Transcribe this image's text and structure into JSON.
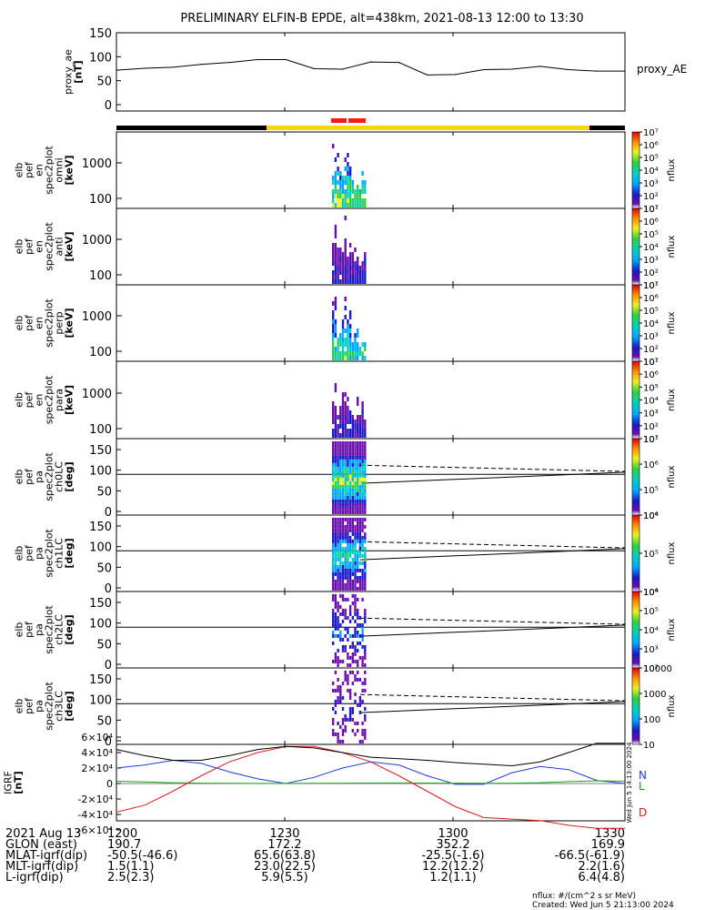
{
  "title": "PRELIMINARY ELFIN-B EPDE, alt=438km, 2021-08-13 12:00 to 13:30",
  "time_ticks": [
    "1200",
    "1230",
    "1300",
    "1330"
  ],
  "colors": {
    "axis": "#000000",
    "ae_line": "#000000",
    "bar_black": "#000000",
    "bar_yellow": "#f5d800",
    "bar_red": "#ff1a1a",
    "comp_n": "#1f3fd0",
    "comp_l": "#1aa31a",
    "comp_d": "#d81b1b",
    "dashed_line": "#000000"
  },
  "panels": {
    "ae": {
      "ylabel": "proxy_ae",
      "unit": "[nT]",
      "legend": "proxy_AE",
      "ticks": [
        "0",
        "50",
        "100",
        "150"
      ]
    },
    "energy": [
      {
        "ylabel": [
          "elb",
          "pef",
          "en",
          "spec2plot",
          "omni"
        ],
        "unit": "[keV]",
        "ticks": [
          "100",
          "1000"
        ],
        "cb_ticks": [
          "10¹",
          "10²",
          "10³",
          "10⁴",
          "10⁵",
          "10⁶",
          "10⁷"
        ],
        "cb_label": "nflux"
      },
      {
        "ylabel": [
          "elb",
          "pef",
          "en",
          "spec2plot",
          "anti"
        ],
        "unit": "[keV]",
        "ticks": [
          "100",
          "1000"
        ],
        "cb_ticks": [
          "10¹",
          "10²",
          "10³",
          "10⁴",
          "10⁵",
          "10⁶",
          "10⁷"
        ],
        "cb_label": "nflux"
      },
      {
        "ylabel": [
          "elb",
          "pef",
          "en",
          "spec2plot",
          "perp"
        ],
        "unit": "[keV]",
        "ticks": [
          "100",
          "1000"
        ],
        "cb_ticks": [
          "10¹",
          "10²",
          "10³",
          "10⁴",
          "10⁵",
          "10⁶",
          "10⁷"
        ],
        "cb_label": "nflux"
      },
      {
        "ylabel": [
          "elb",
          "pef",
          "en",
          "spec2plot",
          "para"
        ],
        "unit": "[keV]",
        "ticks": [
          "100",
          "1000"
        ],
        "cb_ticks": [
          "10¹",
          "10²",
          "10³",
          "10⁴",
          "10⁵",
          "10⁶",
          "10⁷"
        ],
        "cb_label": "nflux"
      }
    ],
    "pa": [
      {
        "ylabel": [
          "elb",
          "pef",
          "pa",
          "spec2plot",
          "ch0LC"
        ],
        "unit": "[deg]",
        "ticks": [
          "0",
          "50",
          "100",
          "150"
        ],
        "cb_ticks": [
          "10⁴",
          "10⁵",
          "10⁶",
          "10⁷"
        ],
        "cb_label": "nflux"
      },
      {
        "ylabel": [
          "elb",
          "pef",
          "pa",
          "spec2plot",
          "ch1LC"
        ],
        "unit": "[deg]",
        "ticks": [
          "0",
          "50",
          "100",
          "150"
        ],
        "cb_ticks": [
          "10⁴",
          "10⁵",
          "10⁶"
        ],
        "cb_label": "nflux"
      },
      {
        "ylabel": [
          "elb",
          "pef",
          "pa",
          "spec2plot",
          "ch2LC"
        ],
        "unit": "[deg]",
        "ticks": [
          "0",
          "50",
          "100",
          "150"
        ],
        "cb_ticks": [
          "10²",
          "10³",
          "10⁴",
          "10⁵",
          "10⁶"
        ],
        "cb_label": "nflux"
      },
      {
        "ylabel": [
          "elb",
          "pef",
          "pa",
          "spec2plot",
          "ch3LC"
        ],
        "unit": "[deg]",
        "ticks": [
          "0",
          "50",
          "100",
          "150"
        ],
        "cb_ticks": [
          "10",
          "100",
          "1000",
          "10000"
        ],
        "cb_label": "nflux"
      }
    ],
    "igrf": {
      "ylabel": "IGRF",
      "unit": "[nT]",
      "ticks": [
        "-6×10⁴",
        "-4×10⁴",
        "-2×10⁴",
        "0",
        "2×10⁴",
        "4×10⁴",
        "6×10⁴"
      ],
      "labels": [
        "N",
        "L",
        "D"
      ],
      "side_note": "Wed Jun  5 14:13:00 2024"
    }
  },
  "orbit_table": {
    "rows": [
      {
        "label": "2021 Aug 13",
        "values": [
          "1200",
          "1230",
          "1300",
          "1330"
        ]
      },
      {
        "label": "GLON (east)",
        "values": [
          "190.7",
          "172.2",
          "352.2",
          "169.9"
        ]
      },
      {
        "label": "MLAT-igrf(dip)",
        "values": [
          "-50.5(-46.6)",
          "65.6(63.8)",
          "-25.5(-1.6)",
          "-66.5(-61.9)"
        ]
      },
      {
        "label": "MLT-igrf(dip)",
        "values": [
          "1.5(1.1)",
          "23.0(22.5)",
          "12.2(12.2)",
          "2.2(1.6)"
        ]
      },
      {
        "label": "L-igrf(dip)",
        "values": [
          "2.5(2.3)",
          "5.9(5.5)",
          "1.2(1.1)",
          "6.4(4.8)"
        ]
      }
    ]
  },
  "footer": {
    "units": "nflux: #/(cm^2 s sr MeV)",
    "created": "Created: Wed Jun  5 21:13:00 2024"
  },
  "chart_data": [
    {
      "type": "line",
      "panel": "proxy_ae",
      "x": [
        "12:00",
        "12:05",
        "12:10",
        "12:15",
        "12:20",
        "12:25",
        "12:30",
        "12:35",
        "12:40",
        "12:45",
        "12:50",
        "12:55",
        "13:00",
        "13:05",
        "13:10",
        "13:15",
        "13:20",
        "13:25",
        "13:30"
      ],
      "y": [
        72,
        76,
        78,
        84,
        88,
        94,
        94,
        75,
        74,
        89,
        88,
        62,
        63,
        73,
        74,
        80,
        73,
        70,
        70
      ],
      "ylabel": "proxy_ae",
      "ylim": [
        0,
        150
      ]
    },
    {
      "type": "line",
      "panel": "IGRF",
      "x": [
        "12:00",
        "12:05",
        "12:10",
        "12:15",
        "12:20",
        "12:25",
        "12:30",
        "12:35",
        "12:40",
        "12:45",
        "12:50",
        "12:55",
        "13:00",
        "13:05",
        "13:10",
        "13:15",
        "13:20",
        "13:25",
        "13:30"
      ],
      "series": [
        {
          "name": "N",
          "values": [
            20000,
            24000,
            30000,
            26000,
            15000,
            6000,
            0,
            8000,
            20000,
            28000,
            24000,
            10000,
            -1000,
            -1000,
            14000,
            22000,
            18000,
            4000,
            0
          ]
        },
        {
          "name": "L",
          "values": [
            3000,
            2000,
            1000,
            500,
            300,
            200,
            200,
            300,
            400,
            600,
            800,
            600,
            400,
            300,
            500,
            1000,
            2500,
            3500,
            3000
          ]
        },
        {
          "name": "D",
          "values": [
            -37000,
            -28000,
            -10000,
            10000,
            28000,
            40000,
            48000,
            48000,
            40000,
            28000,
            10000,
            -10000,
            -30000,
            -44000,
            -46000,
            -48000,
            -54000,
            -58000,
            -58000
          ]
        },
        {
          "name": "",
          "values": [
            44000,
            36000,
            30000,
            30000,
            36000,
            44000,
            48000,
            46000,
            40000,
            34000,
            32000,
            30000,
            27000,
            25000,
            23000,
            28000,
            40000,
            52000,
            52000
          ]
        }
      ]
    }
  ]
}
